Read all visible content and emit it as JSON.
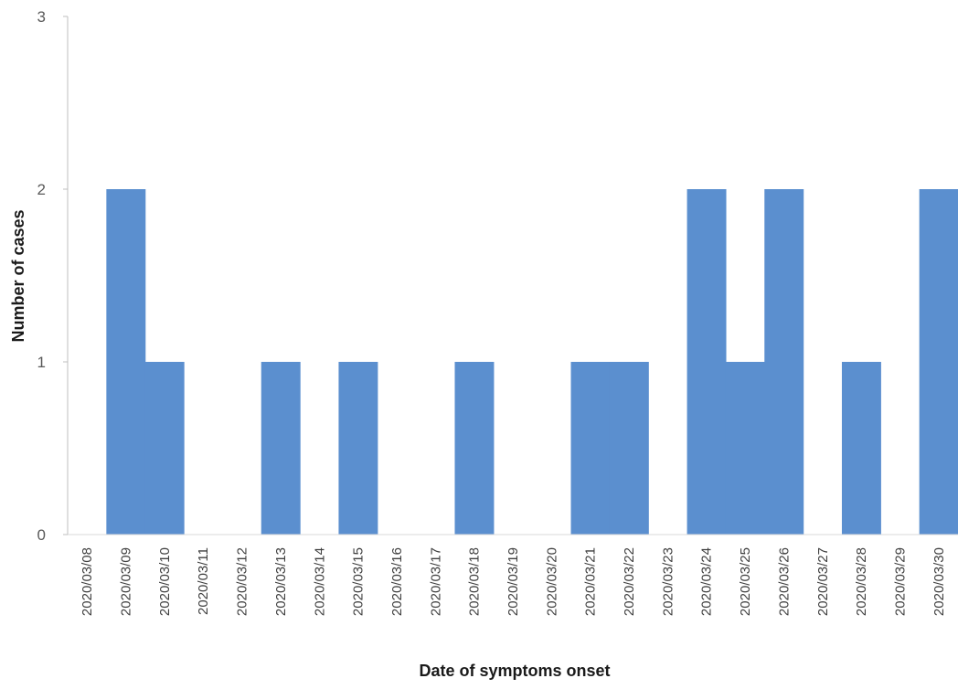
{
  "chart_data": {
    "type": "bar",
    "title": "",
    "xlabel": "Date of symptoms onset",
    "ylabel": "Number of cases",
    "ylim": [
      0,
      3
    ],
    "yticks": [
      "0",
      "1",
      "2",
      "3"
    ],
    "categories": [
      "2020/03/08",
      "2020/03/09",
      "2020/03/10",
      "2020/03/11",
      "2020/03/12",
      "2020/03/13",
      "2020/03/14",
      "2020/03/15",
      "2020/03/16",
      "2020/03/17",
      "2020/03/18",
      "2020/03/19",
      "2020/03/20",
      "2020/03/21",
      "2020/03/22",
      "2020/03/23",
      "2020/03/24",
      "2020/03/25",
      "2020/03/26",
      "2020/03/27",
      "2020/03/28",
      "2020/03/29",
      "2020/03/30"
    ],
    "values": [
      0,
      2,
      1,
      0,
      0,
      1,
      0,
      1,
      0,
      0,
      1,
      0,
      0,
      1,
      1,
      0,
      2,
      1,
      2,
      0,
      1,
      0,
      2
    ],
    "bar_color": "#5b8fcf",
    "grid": false,
    "legend": "none"
  }
}
